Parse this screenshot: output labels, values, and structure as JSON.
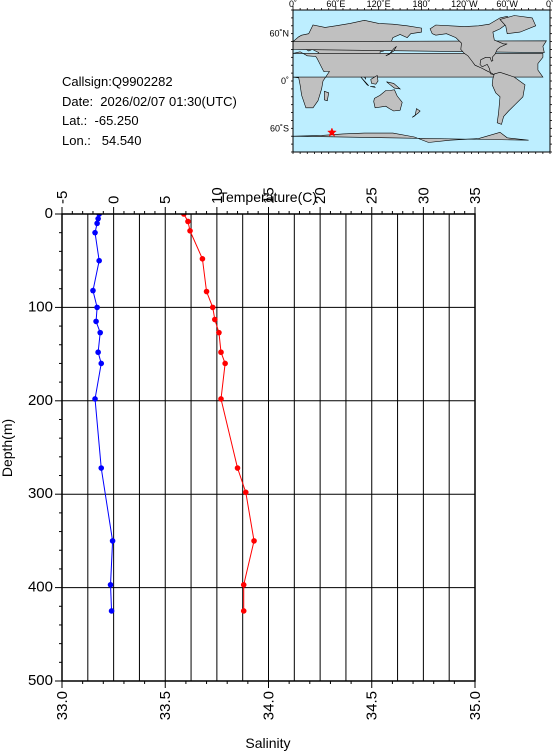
{
  "station": {
    "callsign": "Callsign:Q9902282",
    "date": "Date:  2026/02/07 01:30(UTC)",
    "lat": "Lat.:  -65.250",
    "lon": "Lon.:   54.540"
  },
  "map": {
    "top_labels": [
      "0˚",
      "60˚E",
      "120˚E",
      "180˚",
      "120˚W",
      "60˚W",
      "0˚"
    ],
    "lat_labels": [
      "60˚N",
      "0˚",
      "60˚S"
    ],
    "ocean_color": "#bdeeff",
    "land_color": "#c0c0c0",
    "marker_color": "#ff0000",
    "marker": {
      "lon": 54.54,
      "lat": -65.25
    }
  },
  "chart_data": {
    "type": "line",
    "xlabel_top": "Temperature(C)",
    "xlabel_bottom": "Salinity",
    "ylabel": "Depth(m)",
    "temp_range": [
      -5,
      35
    ],
    "sal_range": [
      33.0,
      35.0
    ],
    "depth_range": [
      0,
      500
    ],
    "temp_ticks": [
      "-5",
      "0",
      "5",
      "10",
      "15",
      "20",
      "25",
      "30",
      "35"
    ],
    "sal_ticks": [
      "33.0",
      "33.5",
      "34.0",
      "34.5",
      "35.0"
    ],
    "depth_ticks": [
      "0",
      "100",
      "200",
      "300",
      "400",
      "500"
    ],
    "grid": true,
    "series": [
      {
        "axis": "temperature",
        "color": "#0000ff",
        "points": [
          {
            "depth": 0,
            "value": -1.4
          },
          {
            "depth": 5,
            "value": -1.5
          },
          {
            "depth": 10,
            "value": -1.6
          },
          {
            "depth": 20,
            "value": -1.8
          },
          {
            "depth": 50,
            "value": -1.4
          },
          {
            "depth": 82,
            "value": -2.0
          },
          {
            "depth": 100,
            "value": -1.6
          },
          {
            "depth": 115,
            "value": -1.7
          },
          {
            "depth": 127,
            "value": -1.3
          },
          {
            "depth": 148,
            "value": -1.5
          },
          {
            "depth": 160,
            "value": -1.2
          },
          {
            "depth": 198,
            "value": -1.8
          },
          {
            "depth": 272,
            "value": -1.2
          },
          {
            "depth": 350,
            "value": -0.1
          },
          {
            "depth": 397,
            "value": -0.3
          },
          {
            "depth": 425,
            "value": -0.2
          }
        ]
      },
      {
        "axis": "salinity",
        "color": "#ff0000",
        "points": [
          {
            "depth": 0,
            "value": 33.59
          },
          {
            "depth": 8,
            "value": 33.61
          },
          {
            "depth": 18,
            "value": 33.62
          },
          {
            "depth": 48,
            "value": 33.68
          },
          {
            "depth": 83,
            "value": 33.7
          },
          {
            "depth": 100,
            "value": 33.73
          },
          {
            "depth": 113,
            "value": 33.74
          },
          {
            "depth": 127,
            "value": 33.76
          },
          {
            "depth": 148,
            "value": 33.77
          },
          {
            "depth": 160,
            "value": 33.79
          },
          {
            "depth": 198,
            "value": 33.77
          },
          {
            "depth": 272,
            "value": 33.85
          },
          {
            "depth": 298,
            "value": 33.89
          },
          {
            "depth": 350,
            "value": 33.93
          },
          {
            "depth": 397,
            "value": 33.88
          },
          {
            "depth": 425,
            "value": 33.88
          }
        ]
      }
    ]
  }
}
